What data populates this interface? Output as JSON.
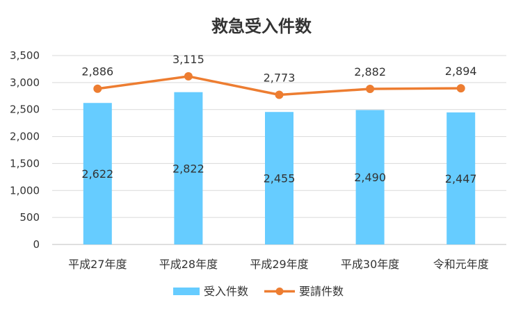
{
  "chart_data": {
    "type": "bar",
    "title": "救急受入件数",
    "categories": [
      "平成27年度",
      "平成28年度",
      "平成29年度",
      "平成30年度",
      "令和元年度"
    ],
    "series": [
      {
        "name": "受入件数",
        "type": "bar",
        "color": "#66CCFF",
        "values": [
          2622,
          2822,
          2455,
          2490,
          2447
        ],
        "labels": [
          "2,622",
          "2,822",
          "2,455",
          "2,490",
          "2,447"
        ]
      },
      {
        "name": "要請件数",
        "type": "line",
        "color": "#ED7D31",
        "values": [
          2886,
          3115,
          2773,
          2882,
          2894
        ],
        "labels": [
          "2,886",
          "3,115",
          "2,773",
          "2,882",
          "2,894"
        ]
      }
    ],
    "ylim": [
      0,
      3500
    ],
    "yticks": [
      0,
      500,
      1000,
      1500,
      2000,
      2500,
      3000,
      3500
    ],
    "ytick_labels": [
      "0",
      "500",
      "1,000",
      "1,500",
      "2,000",
      "2,500",
      "3,000",
      "3,500"
    ],
    "grid": true,
    "legend_position": "bottom"
  }
}
